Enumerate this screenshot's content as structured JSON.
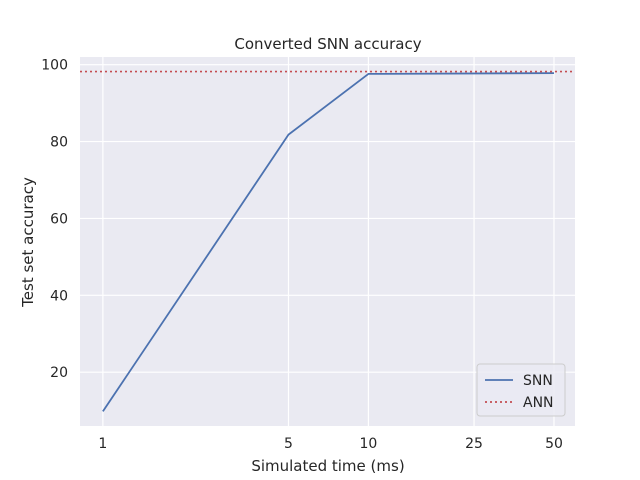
{
  "chart_data": {
    "type": "line",
    "title": "Converted SNN accuracy",
    "xlabel": "Simulated time (ms)",
    "ylabel": "Test set accuracy",
    "x_scale": "log",
    "x_ticks": [
      1,
      5,
      10,
      25,
      50
    ],
    "y_ticks": [
      20,
      40,
      60,
      80,
      100
    ],
    "xlim": [
      0.82,
      60
    ],
    "ylim": [
      6,
      102
    ],
    "grid": true,
    "legend_position": "lower-right",
    "series": [
      {
        "name": "SNN",
        "style": "solid",
        "color": "#4c72b0",
        "x": [
          1,
          5,
          10,
          50
        ],
        "y": [
          9.8,
          81.8,
          97.6,
          97.8
        ]
      },
      {
        "name": "ANN",
        "style": "dotted",
        "color": "#c44e52",
        "hline": 98.2
      }
    ],
    "colors": {
      "plot_background": "#eaeaf2",
      "grid": "#ffffff",
      "text": "#262626"
    }
  }
}
